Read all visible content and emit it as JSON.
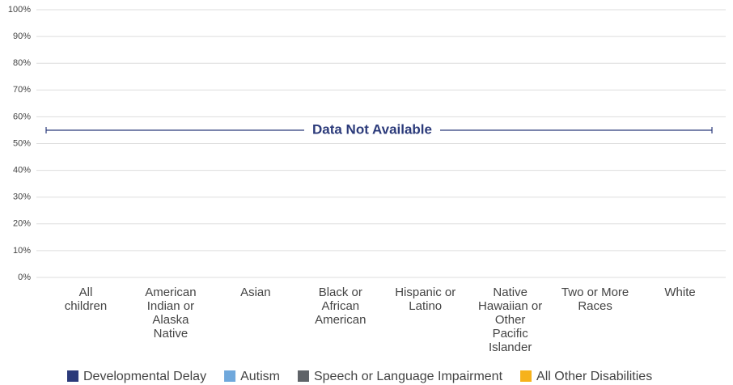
{
  "chart_data": {
    "type": "bar",
    "categories": [
      "All children",
      "American Indian or Alaska Native",
      "Asian",
      "Black or African American",
      "Hispanic or Latino",
      "Native Hawaiian or Other Pacific Islander",
      "Two or More Races",
      "White"
    ],
    "series": [
      {
        "name": "Developmental Delay",
        "color": "#2b3a7a",
        "values": [
          null,
          null,
          null,
          null,
          null,
          null,
          null,
          null
        ]
      },
      {
        "name": "Autism",
        "color": "#6fa8dc",
        "values": [
          null,
          null,
          null,
          null,
          null,
          null,
          null,
          null
        ]
      },
      {
        "name": "Speech or Language Impairment",
        "color": "#5f6368",
        "values": [
          null,
          null,
          null,
          null,
          null,
          null,
          null,
          null
        ]
      },
      {
        "name": "All Other Disabilities",
        "color": "#f6b21b",
        "values": [
          null,
          null,
          null,
          null,
          null,
          null,
          null,
          null
        ]
      }
    ],
    "annotation": "Data Not Available",
    "ylim": [
      0,
      100
    ],
    "yticks": [
      {
        "value": 0,
        "label": "0%"
      },
      {
        "value": 10,
        "label": "10%"
      },
      {
        "value": 20,
        "label": "20%"
      },
      {
        "value": 30,
        "label": "30%"
      },
      {
        "value": 40,
        "label": "40%"
      },
      {
        "value": 50,
        "label": "50%"
      },
      {
        "value": 60,
        "label": "60%"
      },
      {
        "value": 70,
        "label": "70%"
      },
      {
        "value": 80,
        "label": "80%"
      },
      {
        "value": 90,
        "label": "90%"
      },
      {
        "value": 100,
        "label": "100%"
      }
    ],
    "grid": true
  }
}
